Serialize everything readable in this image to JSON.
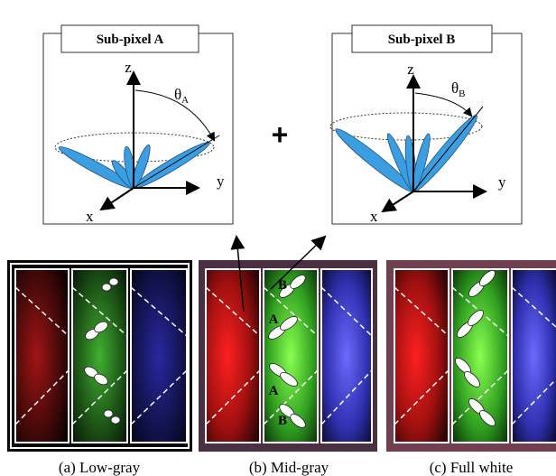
{
  "subpixels": [
    {
      "label": "Sub-pixel A",
      "axes": {
        "z": "z",
        "y": "y",
        "x": "x"
      },
      "angle": {
        "symbol": "θ",
        "sub": "A"
      }
    },
    {
      "label": "Sub-pixel B",
      "axes": {
        "z": "z",
        "y": "y",
        "x": "x"
      },
      "angle": {
        "symbol": "θ",
        "sub": "B"
      }
    }
  ],
  "operator": "+",
  "panels": [
    {
      "caption": "(a) Low-gray"
    },
    {
      "caption": "(b) Mid-gray",
      "labels": [
        "B",
        "A",
        "A",
        "B"
      ]
    },
    {
      "caption": "(c) Full white"
    }
  ]
}
